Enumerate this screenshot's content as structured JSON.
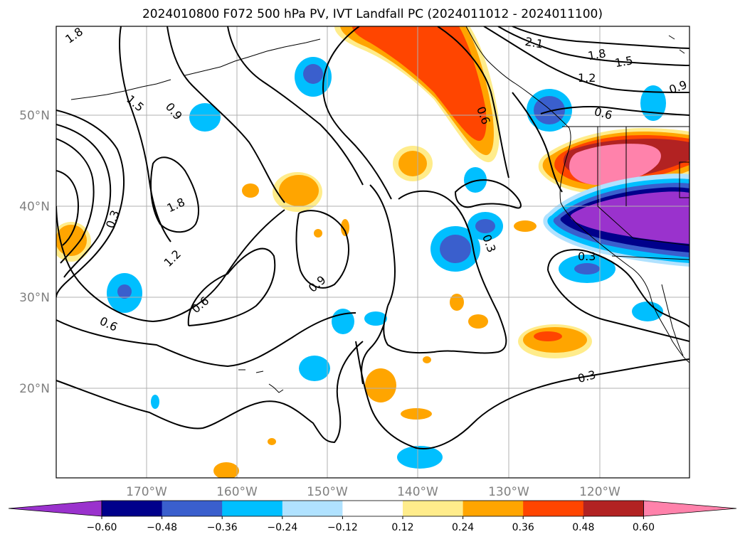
{
  "title": "2024010800 F072 500 hPa PV, IVT Landfall PC (2024011012 - 2024011100)",
  "lat_labels": [
    "50°N",
    "40°N",
    "30°N",
    "20°N"
  ],
  "lon_labels": [
    "170°W",
    "160°W",
    "150°W",
    "140°W",
    "130°W",
    "120°W"
  ],
  "colorbar": {
    "tick_labels": [
      "−0.60",
      "−0.48",
      "−0.36",
      "−0.24",
      "−0.12",
      "0.12",
      "0.24",
      "0.36",
      "0.48",
      "0.60"
    ],
    "colors": [
      "#9a32cd",
      "#00008b",
      "#3a5fcd",
      "#00bfff",
      "#b0e2ff",
      "#ffffff",
      "#ffec8b",
      "#ffa500",
      "#ff4500",
      "#b22222",
      "#ff82ab"
    ]
  },
  "contour_labels": [
    "1.8",
    "1.5",
    "0.9",
    "1.8",
    "0.3",
    "1.2",
    "0.6",
    "0.6",
    "0.9",
    "2.1",
    "1.8",
    "1.5",
    "1.2",
    "0.9",
    "0.6",
    "0.6",
    "0.3",
    "0.3",
    "0.3"
  ]
}
